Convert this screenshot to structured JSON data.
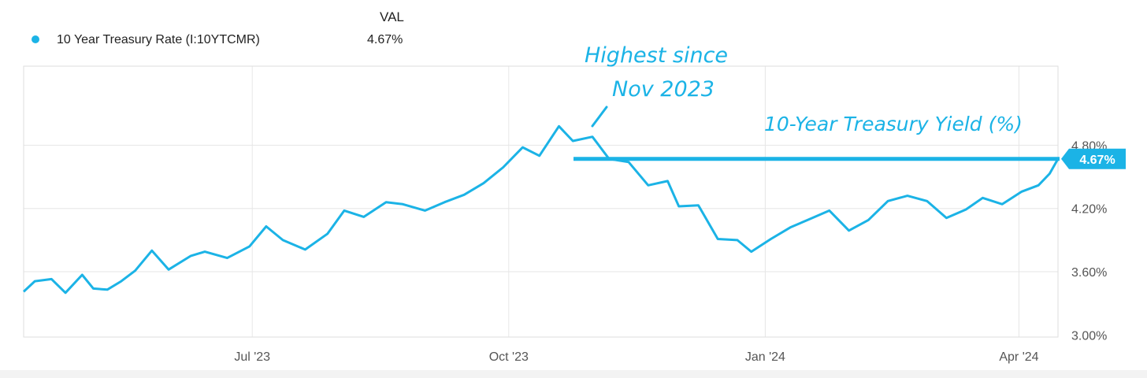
{
  "legend": {
    "value_header": "VAL",
    "series_name": "10 Year Treasury Rate (I:10YTCMR)",
    "series_value": "4.67%"
  },
  "chart_data": {
    "type": "line",
    "series": [
      {
        "name": "10 Year Treasury Rate (I:10YTCMR)",
        "color": "#1bb3e6",
        "points": [
          [
            "2023-04-10",
            3.41
          ],
          [
            "2023-04-14",
            3.51
          ],
          [
            "2023-04-20",
            3.53
          ],
          [
            "2023-04-25",
            3.4
          ],
          [
            "2023-05-01",
            3.57
          ],
          [
            "2023-05-05",
            3.44
          ],
          [
            "2023-05-10",
            3.43
          ],
          [
            "2023-05-15",
            3.51
          ],
          [
            "2023-05-20",
            3.61
          ],
          [
            "2023-05-26",
            3.8
          ],
          [
            "2023-06-01",
            3.62
          ],
          [
            "2023-06-09",
            3.75
          ],
          [
            "2023-06-14",
            3.79
          ],
          [
            "2023-06-22",
            3.73
          ],
          [
            "2023-06-30",
            3.84
          ],
          [
            "2023-07-06",
            4.03
          ],
          [
            "2023-07-12",
            3.9
          ],
          [
            "2023-07-20",
            3.81
          ],
          [
            "2023-07-28",
            3.96
          ],
          [
            "2023-08-03",
            4.18
          ],
          [
            "2023-08-10",
            4.12
          ],
          [
            "2023-08-18",
            4.26
          ],
          [
            "2023-08-24",
            4.24
          ],
          [
            "2023-09-01",
            4.18
          ],
          [
            "2023-09-08",
            4.26
          ],
          [
            "2023-09-15",
            4.33
          ],
          [
            "2023-09-22",
            4.44
          ],
          [
            "2023-09-29",
            4.59
          ],
          [
            "2023-10-06",
            4.78
          ],
          [
            "2023-10-12",
            4.7
          ],
          [
            "2023-10-19",
            4.98
          ],
          [
            "2023-10-24",
            4.84
          ],
          [
            "2023-10-31",
            4.88
          ],
          [
            "2023-11-06",
            4.67
          ],
          [
            "2023-11-13",
            4.64
          ],
          [
            "2023-11-20",
            4.42
          ],
          [
            "2023-11-27",
            4.46
          ],
          [
            "2023-12-01",
            4.22
          ],
          [
            "2023-12-08",
            4.23
          ],
          [
            "2023-12-15",
            3.91
          ],
          [
            "2023-12-22",
            3.9
          ],
          [
            "2023-12-27",
            3.79
          ],
          [
            "2024-01-03",
            3.91
          ],
          [
            "2024-01-10",
            4.02
          ],
          [
            "2024-01-17",
            4.1
          ],
          [
            "2024-01-24",
            4.18
          ],
          [
            "2024-01-31",
            3.99
          ],
          [
            "2024-02-07",
            4.09
          ],
          [
            "2024-02-14",
            4.27
          ],
          [
            "2024-02-21",
            4.32
          ],
          [
            "2024-02-28",
            4.27
          ],
          [
            "2024-03-06",
            4.11
          ],
          [
            "2024-03-13",
            4.19
          ],
          [
            "2024-03-19",
            4.3
          ],
          [
            "2024-03-26",
            4.24
          ],
          [
            "2024-04-02",
            4.36
          ],
          [
            "2024-04-08",
            4.42
          ],
          [
            "2024-04-12",
            4.53
          ],
          [
            "2024-04-15",
            4.67
          ]
        ]
      }
    ],
    "x_ticks": [
      "Jul '23",
      "Oct '23",
      "Jan '24",
      "Apr '24"
    ],
    "y_ticks": [
      "4.80%",
      "4.20%",
      "3.60%",
      "3.00%"
    ],
    "ylim": [
      2.98,
      5.55
    ],
    "current_value_label": "4.67%",
    "grid": true,
    "annotations": {
      "peak_note_line1": "Highest since",
      "peak_note_line2": "Nov 2023",
      "level_label": "10-Year Treasury Yield (%)",
      "level_value": 4.67
    }
  }
}
